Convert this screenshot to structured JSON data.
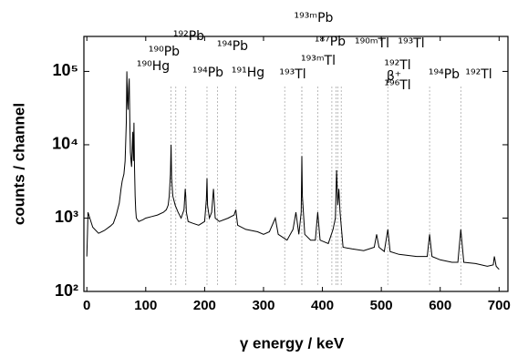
{
  "chart_data": {
    "type": "line",
    "color": "#000000",
    "log_y": true,
    "x_label": "γ energy / keV",
    "y_label": "counts / channel",
    "xlim": [
      -5,
      715
    ],
    "ylim": [
      100,
      300000
    ],
    "xticks": [
      0,
      100,
      200,
      300,
      400,
      500,
      600,
      700
    ],
    "yticks": [
      {
        "value": 100,
        "label": "10²"
      },
      {
        "value": 1000,
        "label": "10³"
      },
      {
        "value": 10000,
        "label": "10⁴"
      },
      {
        "value": 100000,
        "label": "10⁵"
      }
    ],
    "x": [
      0,
      1,
      2,
      5,
      10,
      20,
      30,
      40,
      45,
      50,
      55,
      58,
      60,
      63,
      65,
      67,
      68,
      69,
      70,
      71,
      72,
      73,
      74,
      75,
      76,
      77,
      78,
      79,
      80,
      81,
      82,
      83,
      84,
      88,
      95,
      100,
      110,
      120,
      130,
      135,
      138,
      140,
      142,
      143,
      144,
      146,
      150,
      155,
      160,
      165,
      167,
      168,
      169,
      172,
      180,
      190,
      200,
      203,
      204,
      205,
      208,
      212,
      215,
      218,
      225,
      240,
      250,
      253,
      256,
      270,
      290,
      300,
      310,
      320,
      325,
      340,
      350,
      355,
      360,
      364,
      365,
      366,
      370,
      380,
      388,
      392,
      396,
      410,
      418,
      422,
      424,
      426,
      428,
      430,
      435,
      450,
      470,
      488,
      492,
      496,
      505,
      511,
      515,
      530,
      560,
      578,
      582,
      586,
      600,
      620,
      630,
      635,
      640,
      660,
      680,
      690,
      692,
      695,
      700
    ],
    "values": [
      300,
      600,
      1200,
      1000,
      750,
      620,
      680,
      780,
      850,
      1100,
      1600,
      2500,
      3200,
      4000,
      6000,
      20000,
      100000,
      40000,
      30000,
      60000,
      80000,
      20000,
      8000,
      6000,
      5000,
      9000,
      15000,
      6000,
      20000,
      5000,
      2000,
      1300,
      1000,
      900,
      950,
      1000,
      1050,
      1100,
      1200,
      1300,
      1500,
      2000,
      4000,
      10000,
      3500,
      2000,
      1500,
      1200,
      1000,
      1300,
      2500,
      2000,
      1200,
      900,
      850,
      800,
      900,
      1800,
      3500,
      1500,
      1000,
      1200,
      2500,
      1000,
      900,
      1000,
      1100,
      1300,
      800,
      700,
      650,
      600,
      650,
      1000,
      600,
      500,
      700,
      1200,
      600,
      1200,
      7000,
      2000,
      600,
      500,
      500,
      1200,
      500,
      450,
      700,
      1000,
      4500,
      1500,
      2500,
      1200,
      400,
      380,
      360,
      400,
      600,
      400,
      350,
      700,
      350,
      320,
      300,
      300,
      600,
      300,
      270,
      250,
      250,
      700,
      250,
      240,
      220,
      230,
      300,
      220,
      200
    ],
    "annotations": [
      {
        "text": "¹⁹²Pb",
        "x": 168
      },
      {
        "text": "¹⁹⁰Pb",
        "x": 151
      },
      {
        "text": "¹⁹⁰Hg",
        "x": 143
      },
      {
        "text": "¹⁹⁴Pb",
        "x": 222
      },
      {
        "text": "¹⁹⁴Pb",
        "x": 204
      },
      {
        "text": "¹⁹¹Hg",
        "x": 253
      },
      {
        "text": "¹⁹³Tl",
        "x": 336
      },
      {
        "text": "¹⁹³ᵐPb",
        "x": 365
      },
      {
        "text": "¹⁹³ᵐTl",
        "x": 365
      },
      {
        "text": "¹⁸⁷Pb",
        "x": 392
      },
      {
        "text": "¹⁹⁰ᵐTl",
        "x": 416
      },
      {
        "text": "¹⁹³Tl",
        "x": 432
      },
      {
        "text": "¹⁹²Tl",
        "x": 423
      },
      {
        "text": "¹⁹⁶Tl",
        "x": 426
      },
      {
        "text": "β⁺",
        "x": 511
      },
      {
        "text": "¹⁹⁴Pb",
        "x": 582
      },
      {
        "text": "¹⁹²Tl",
        "x": 635
      }
    ]
  }
}
